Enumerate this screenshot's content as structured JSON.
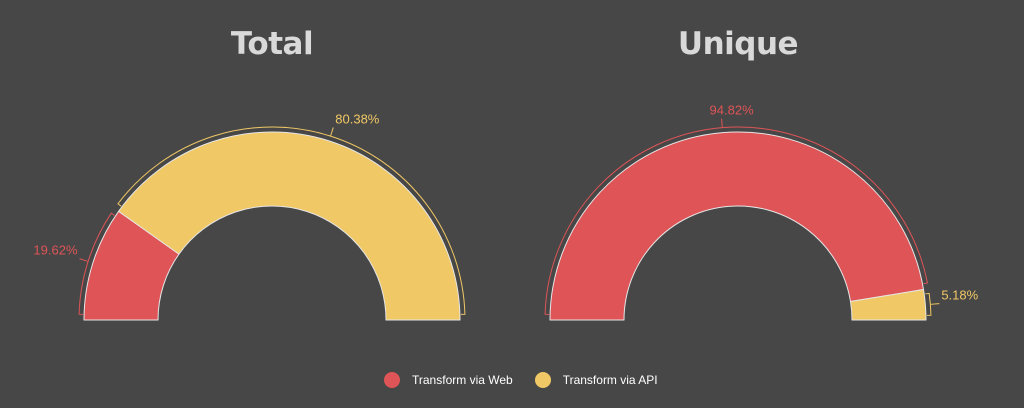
{
  "chart_data": [
    {
      "type": "pie",
      "title": "Total",
      "slices": [
        {
          "label": "Transform via Web",
          "value": 19.62,
          "display": "19.62%",
          "color": "#de5457"
        },
        {
          "label": "Transform via API",
          "value": 80.38,
          "display": "80.38%",
          "color": "#f0c865"
        }
      ]
    },
    {
      "type": "pie",
      "title": "Unique",
      "slices": [
        {
          "label": "Transform via Web",
          "value": 94.82,
          "display": "94.82%",
          "color": "#de5457"
        },
        {
          "label": "Transform via API",
          "value": 5.18,
          "display": "5.18%",
          "color": "#f0c865"
        }
      ]
    }
  ],
  "legend": [
    {
      "label": "Transform via Web",
      "color": "#de5457"
    },
    {
      "label": "Transform via API",
      "color": "#f0c865"
    }
  ],
  "colors": {
    "background": "#474747",
    "title": "#d9d9d9",
    "legend_text": "#ffffff"
  }
}
